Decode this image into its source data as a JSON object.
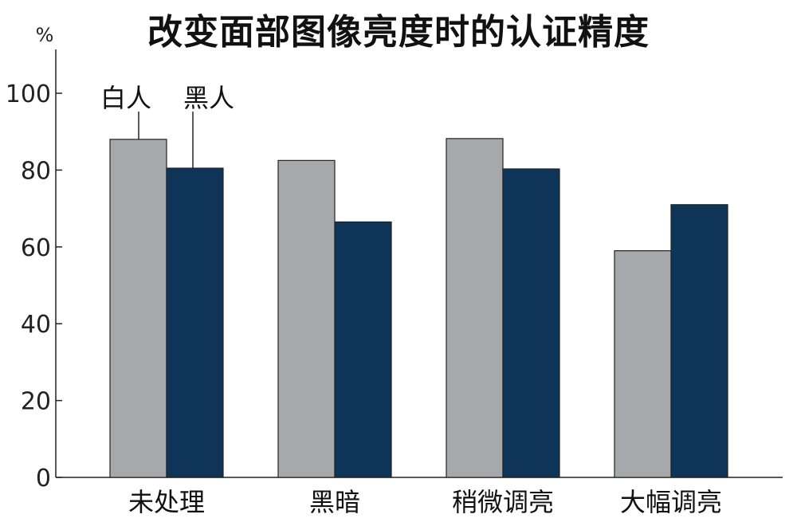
{
  "chart_data": {
    "type": "bar",
    "title": "改变面部图像亮度时的认证精度",
    "ylabel": "%",
    "xlabel": "",
    "ylim": [
      0,
      100
    ],
    "yticks": [
      0,
      20,
      40,
      60,
      80,
      100
    ],
    "categories": [
      "未处理",
      "黑暗",
      "稍微调亮",
      "大幅调亮"
    ],
    "series": [
      {
        "name": "白人",
        "color": "#a7a8ab",
        "values": [
          88,
          82.5,
          88.2,
          59
        ]
      },
      {
        "name": "黑人",
        "color": "#0e3558",
        "values": [
          80.5,
          66.5,
          80.3,
          71
        ]
      }
    ],
    "grid": false,
    "legend": "callout labels above first category bars"
  }
}
